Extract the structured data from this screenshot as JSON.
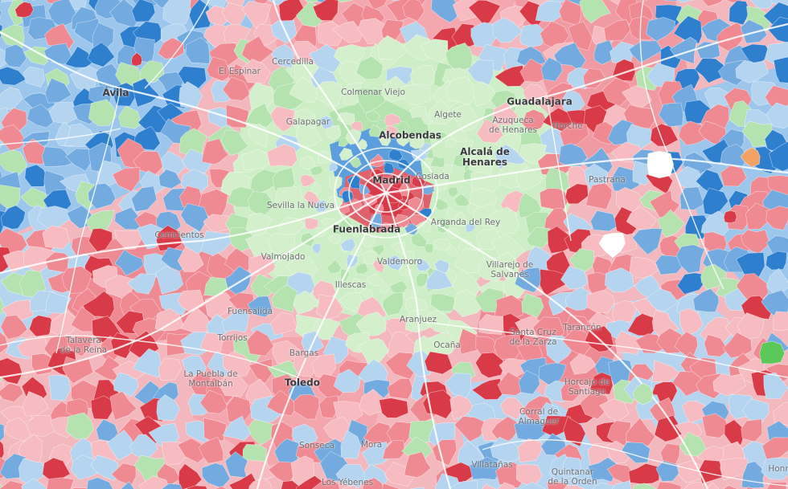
{
  "map": {
    "colors": {
      "red_dark": "#d83a48",
      "red": "#ef8a93",
      "red_light": "#f6bcc2",
      "blue_dark": "#2f7fcf",
      "blue": "#73abe0",
      "blue_light": "#b4d4f0",
      "green": "#b5e3b0",
      "green_light": "#d4efcc",
      "white": "#ffffff",
      "road": "#ffffff"
    },
    "places": [
      {
        "id": "avila",
        "lines": [
          "Ávila"
        ],
        "major": true
      },
      {
        "id": "cercedilla",
        "lines": [
          "Cercedilla"
        ],
        "major": false
      },
      {
        "id": "el-espinar",
        "lines": [
          "El Espinar"
        ],
        "major": false
      },
      {
        "id": "colmenar-viejo",
        "lines": [
          "Colmenar Viejo"
        ],
        "major": false
      },
      {
        "id": "guadalajara",
        "lines": [
          "Guadalajara"
        ],
        "major": true
      },
      {
        "id": "galapagar",
        "lines": [
          "Galapagar"
        ],
        "major": false
      },
      {
        "id": "algete",
        "lines": [
          "Algete"
        ],
        "major": false
      },
      {
        "id": "azuqueca",
        "lines": [
          "Azuqueca",
          "de Henares"
        ],
        "major": false
      },
      {
        "id": "horche",
        "lines": [
          "Horche"
        ],
        "major": false
      },
      {
        "id": "alcobendas",
        "lines": [
          "Alcobendas"
        ],
        "major": true
      },
      {
        "id": "alcala",
        "lines": [
          "Alcalá de",
          "Henares"
        ],
        "major": true
      },
      {
        "id": "madrid",
        "lines": [
          "Madrid"
        ],
        "major": true
      },
      {
        "id": "coslada",
        "lines": [
          "Coslada"
        ],
        "major": false
      },
      {
        "id": "pastrana",
        "lines": [
          "Pastrana"
        ],
        "major": false
      },
      {
        "id": "sevilla-la-nueva",
        "lines": [
          "Sevilla la Nueva"
        ],
        "major": false
      },
      {
        "id": "arganda",
        "lines": [
          "Arganda del Rey"
        ],
        "major": false
      },
      {
        "id": "fuenlabrada",
        "lines": [
          "Fuenlabrada"
        ],
        "major": true
      },
      {
        "id": "cenicientos",
        "lines": [
          "Cenicientos"
        ],
        "major": false
      },
      {
        "id": "valmojado",
        "lines": [
          "Valmojado"
        ],
        "major": false
      },
      {
        "id": "valdemoro",
        "lines": [
          "Valdemoro"
        ],
        "major": false
      },
      {
        "id": "villarejo",
        "lines": [
          "Villarejo de",
          "Salvanés"
        ],
        "major": false
      },
      {
        "id": "illescas",
        "lines": [
          "Illescas"
        ],
        "major": false
      },
      {
        "id": "fuensalida",
        "lines": [
          "Fuensalida"
        ],
        "major": false
      },
      {
        "id": "aranjuez",
        "lines": [
          "Aranjuez"
        ],
        "major": false
      },
      {
        "id": "tarancon",
        "lines": [
          "Tarancón"
        ],
        "major": false
      },
      {
        "id": "santa-cruz",
        "lines": [
          "Santa Cruz",
          "de la Zarza"
        ],
        "major": false
      },
      {
        "id": "talavera",
        "lines": [
          "Talavera",
          "de la Reina"
        ],
        "major": false
      },
      {
        "id": "torrijos",
        "lines": [
          "Torrijos"
        ],
        "major": false
      },
      {
        "id": "ocana",
        "lines": [
          "Ocaña"
        ],
        "major": false
      },
      {
        "id": "bargas",
        "lines": [
          "Bargas"
        ],
        "major": false
      },
      {
        "id": "la-puebla",
        "lines": [
          "La Puebla de",
          "Montalbán"
        ],
        "major": false
      },
      {
        "id": "toledo",
        "lines": [
          "Toledo"
        ],
        "major": true
      },
      {
        "id": "horcajo",
        "lines": [
          "Horcajo de",
          "Santiago"
        ],
        "major": false
      },
      {
        "id": "corral",
        "lines": [
          "Corral de",
          "Almaguer"
        ],
        "major": false
      },
      {
        "id": "sonseca",
        "lines": [
          "Sonseca"
        ],
        "major": false
      },
      {
        "id": "mora",
        "lines": [
          "Mora"
        ],
        "major": false
      },
      {
        "id": "villatanas",
        "lines": [
          "Villatañas"
        ],
        "major": false
      },
      {
        "id": "quintanar",
        "lines": [
          "Quintanar",
          "de la Orden"
        ],
        "major": false
      },
      {
        "id": "los-yebenes",
        "lines": [
          "Los Yébenes"
        ],
        "major": false
      },
      {
        "id": "honrubia",
        "lines": [
          "Honr"
        ],
        "major": false
      }
    ]
  }
}
